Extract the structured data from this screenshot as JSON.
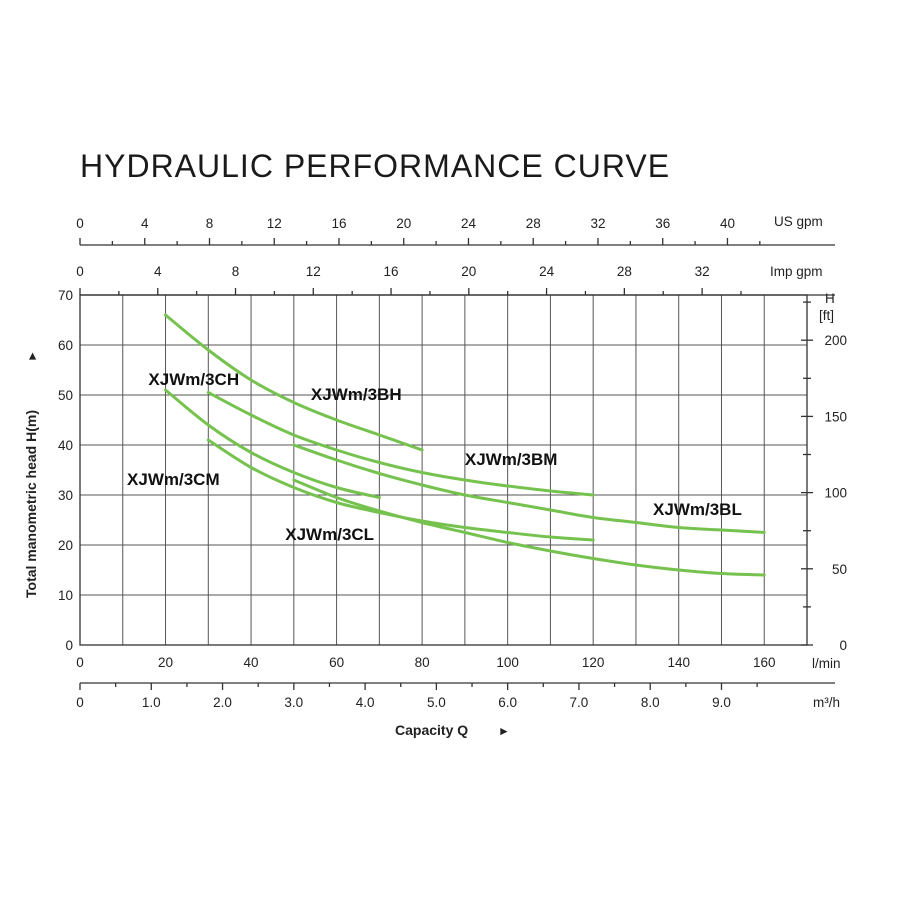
{
  "chart_data": {
    "type": "line",
    "title": "HYDRAULIC PERFORMANCE CURVE",
    "xlabel": "Capacity Q",
    "xlabel_arrow": "►",
    "ylabel": "Total manometric head H(m)",
    "ylabel_arrow": "►",
    "x_unit": "l/min",
    "xlim": [
      0,
      170
    ],
    "ylim": [
      0,
      70
    ],
    "grid": true,
    "x_ticks": [
      0,
      20,
      40,
      60,
      80,
      100,
      120,
      140,
      160
    ],
    "y_ticks": [
      0,
      10,
      20,
      30,
      40,
      50,
      60,
      70
    ],
    "right_axis": {
      "label": "H",
      "unit": "[ft]",
      "ticks": [
        0,
        50,
        100,
        150,
        200
      ]
    },
    "top_axis_us": {
      "unit": "US gpm",
      "ticks": [
        0,
        4,
        8,
        12,
        16,
        20,
        24,
        28,
        32,
        36,
        40
      ]
    },
    "top_axis_imp": {
      "unit": "Imp gpm",
      "ticks": [
        0,
        4,
        8,
        12,
        16,
        20,
        24,
        28,
        32
      ]
    },
    "bottom_axis_m3h": {
      "unit": "m³/h",
      "ticks": [
        "0",
        "1.0",
        "2.0",
        "3.0",
        "4.0",
        "5.0",
        "6.0",
        "7.0",
        "8.0",
        "9.0"
      ]
    },
    "series": [
      {
        "name": "XJWm/3CH",
        "x": [
          20,
          30,
          40,
          50,
          60,
          70,
          80
        ],
        "y": [
          66,
          59,
          53,
          48.5,
          45,
          42,
          39
        ]
      },
      {
        "name": "XJWm/3BH",
        "x": [
          30,
          40,
          50,
          60,
          70,
          80,
          90,
          100,
          110,
          120
        ],
        "y": [
          50.5,
          46,
          42,
          39,
          36.5,
          34.5,
          33,
          31.8,
          30.8,
          30
        ]
      },
      {
        "name": "XJWm/3CM",
        "x": [
          20,
          30,
          40,
          50,
          60,
          70
        ],
        "y": [
          51,
          44,
          38.5,
          34.5,
          31.5,
          29.5
        ]
      },
      {
        "name": "XJWm/3BM",
        "x": [
          50,
          60,
          70,
          80,
          90,
          100,
          110,
          120,
          130,
          140,
          150,
          160
        ],
        "y": [
          40,
          37,
          34.3,
          32,
          30,
          28.5,
          27,
          25.5,
          24.5,
          23.5,
          23,
          22.5
        ]
      },
      {
        "name": "XJWm/3CL",
        "x": [
          30,
          40,
          50,
          60,
          70,
          80,
          90,
          100,
          110,
          120
        ],
        "y": [
          41,
          35.5,
          31.5,
          28.5,
          26.5,
          24.8,
          23.5,
          22.5,
          21.6,
          21
        ]
      },
      {
        "name": "XJWm/3BL",
        "x": [
          50,
          60,
          70,
          80,
          90,
          100,
          110,
          120,
          130,
          140,
          150,
          160
        ],
        "y": [
          33,
          29.5,
          26.8,
          24.5,
          22.5,
          20.5,
          18.8,
          17.3,
          16,
          15,
          14.3,
          14
        ]
      }
    ],
    "labels": {
      "XJWm/3CH": {
        "x": 16,
        "y": 52
      },
      "XJWm/3BH": {
        "x": 54,
        "y": 49
      },
      "XJWm/3CM": {
        "x": 11,
        "y": 32
      },
      "XJWm/3BM": {
        "x": 90,
        "y": 36
      },
      "XJWm/3CL": {
        "x": 48,
        "y": 21
      },
      "XJWm/3BL": {
        "x": 134,
        "y": 26
      }
    },
    "colors": {
      "curve": "#76c24f",
      "grid": "#555555",
      "text": "#222222"
    }
  }
}
